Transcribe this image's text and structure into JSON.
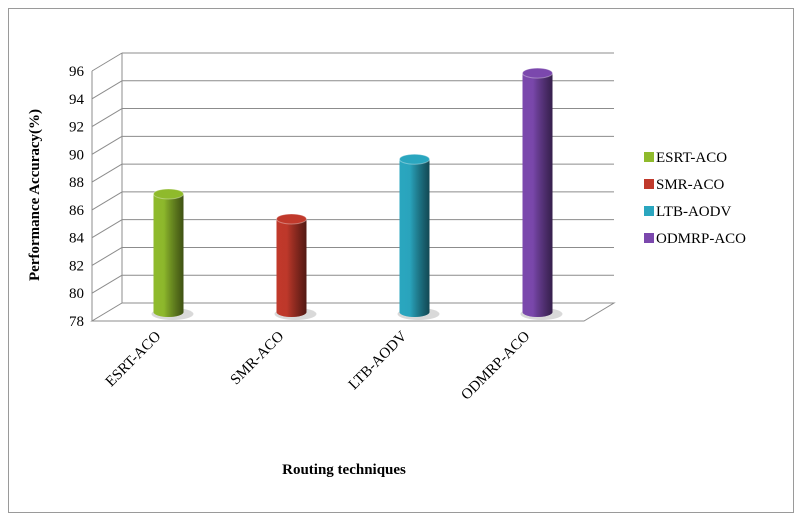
{
  "chart_data": {
    "type": "bar",
    "categories": [
      "ESRT-ACO",
      "SMR-ACO",
      "LTB-AODV",
      "ODMRP-ACO"
    ],
    "values": [
      86.5,
      84.7,
      89.0,
      95.2
    ],
    "xlabel": "Routing techniques",
    "ylabel": "Performance Accuracy(%)",
    "ylim": [
      78,
      96
    ],
    "yticks": [
      78,
      80,
      82,
      84,
      86,
      88,
      90,
      92,
      94,
      96
    ],
    "grid": true,
    "legend": {
      "position": "right",
      "entries": [
        "ESRT-ACO",
        "SMR-ACO",
        "LTB-AODV",
        "ODMRP-ACO"
      ]
    },
    "colors": {
      "ESRT-ACO": "#8fba2c",
      "SMR-ACO": "#c0392b",
      "LTB-AODV": "#2aa6bf",
      "ODMRP-ACO": "#7b48ad"
    }
  }
}
